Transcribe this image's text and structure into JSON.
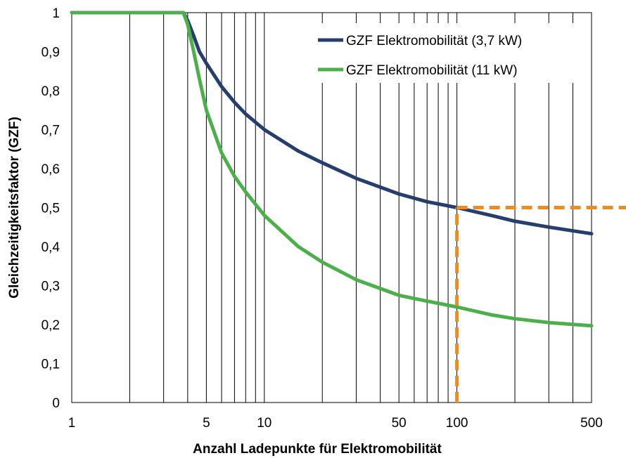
{
  "chart_data": {
    "type": "line",
    "title": "",
    "xlabel": "Anzahl Ladepunkte für Elektromobilität",
    "ylabel": "Gleichzeitigkeitsfaktor (GZF)",
    "x_scale": "log",
    "xlim": [
      1,
      500
    ],
    "ylim": [
      0,
      1
    ],
    "x_ticks": [
      1,
      5,
      10,
      50,
      100,
      500
    ],
    "x_tick_labels": [
      "1",
      "5",
      "10",
      "50",
      "100",
      "500"
    ],
    "y_ticks": [
      0,
      0.1,
      0.2,
      0.3,
      0.4,
      0.5,
      0.6,
      0.7,
      0.8,
      0.9,
      1
    ],
    "y_tick_labels": [
      "0",
      "0,1",
      "0,2",
      "0,3",
      "0,4",
      "0,5",
      "0,6",
      "0,7",
      "0,8",
      "0,9",
      "1"
    ],
    "grid": {
      "vertical": true,
      "horizontal": false
    },
    "legend": "top-right",
    "series": [
      {
        "name": "GZF Elektromobilität (3,7 kW)",
        "color": "#253e6e",
        "x": [
          1,
          2,
          3,
          3.8,
          4,
          4.3,
          4.6,
          5,
          6,
          7,
          8,
          10,
          15,
          20,
          30,
          50,
          70,
          100,
          150,
          200,
          300,
          500
        ],
        "y": [
          1,
          1,
          1,
          1,
          0.98,
          0.94,
          0.9,
          0.87,
          0.81,
          0.77,
          0.74,
          0.7,
          0.645,
          0.615,
          0.575,
          0.535,
          0.515,
          0.5,
          0.48,
          0.465,
          0.45,
          0.433
        ]
      },
      {
        "name": "GZF Elektromobilität (11 kW)",
        "color": "#4bb04a",
        "x": [
          1,
          2,
          3,
          3.8,
          4,
          4.3,
          4.6,
          5,
          6,
          7,
          8,
          10,
          15,
          20,
          30,
          50,
          70,
          100,
          150,
          200,
          300,
          500
        ],
        "y": [
          1,
          1,
          1,
          1,
          0.97,
          0.9,
          0.83,
          0.75,
          0.64,
          0.58,
          0.54,
          0.48,
          0.4,
          0.36,
          0.315,
          0.275,
          0.26,
          0.245,
          0.225,
          0.215,
          0.205,
          0.197
        ]
      }
    ],
    "annotations": [
      {
        "type": "vertical-dashed",
        "x": 100,
        "y_from": 0,
        "y_to": 0.5,
        "color": "#ef8a1e"
      },
      {
        "type": "horizontal-dashed",
        "y": 0.5,
        "x_from": 100,
        "color": "#ef8a1e"
      }
    ]
  }
}
